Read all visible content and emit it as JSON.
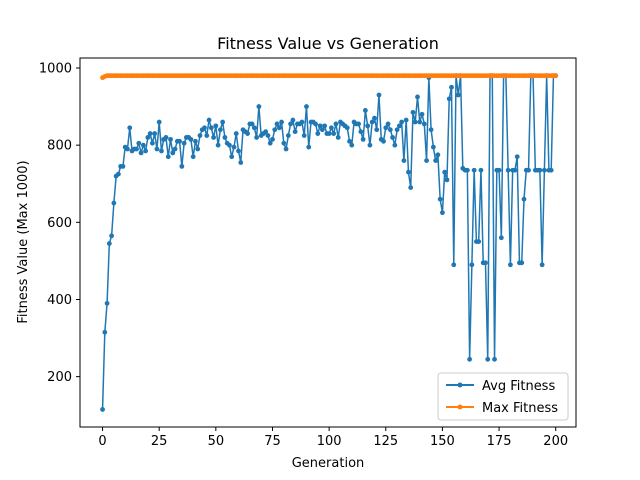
{
  "chart_data": {
    "type": "line",
    "title": "Fitness Value vs Generation",
    "xlabel": "Generation",
    "ylabel": "Fitness Value (Max 1000)",
    "xlim": [
      -9.95,
      208.95
    ],
    "ylim": [
      69.5,
      1025.9
    ],
    "xticks": [
      0,
      25,
      50,
      75,
      100,
      125,
      150,
      175,
      200
    ],
    "yticks": [
      200,
      400,
      600,
      800,
      1000
    ],
    "grid": false,
    "legend": {
      "position": "bottom-right"
    },
    "series": [
      {
        "name": "Avg Fitness",
        "color": "#1f77b4",
        "marker": "circle",
        "x_start": 0,
        "x_step": 1,
        "values": [
          115,
          315,
          390,
          545,
          565,
          650,
          720,
          725,
          745,
          745,
          795,
          790,
          845,
          785,
          790,
          790,
          805,
          780,
          800,
          785,
          820,
          830,
          805,
          830,
          790,
          860,
          785,
          815,
          820,
          770,
          815,
          780,
          790,
          810,
          810,
          745,
          805,
          820,
          820,
          815,
          770,
          810,
          790,
          825,
          840,
          845,
          825,
          865,
          845,
          820,
          850,
          800,
          840,
          860,
          820,
          805,
          800,
          770,
          795,
          830,
          785,
          755,
          840,
          835,
          830,
          855,
          855,
          845,
          820,
          900,
          825,
          830,
          835,
          825,
          805,
          815,
          840,
          855,
          845,
          860,
          805,
          790,
          825,
          855,
          865,
          835,
          855,
          855,
          860,
          825,
          900,
          795,
          860,
          860,
          855,
          830,
          850,
          840,
          850,
          830,
          830,
          845,
          830,
          855,
          820,
          860,
          855,
          850,
          845,
          810,
          800,
          860,
          855,
          855,
          835,
          815,
          890,
          850,
          800,
          860,
          870,
          840,
          930,
          815,
          810,
          845,
          855,
          840,
          820,
          800,
          840,
          850,
          860,
          760,
          865,
          730,
          690,
          885,
          860,
          925,
          860,
          880,
          855,
          760,
          975,
          840,
          795,
          760,
          775,
          660,
          625,
          730,
          710,
          920,
          950,
          490,
          980,
          930,
          980,
          740,
          735,
          735,
          245,
          490,
          735,
          550,
          550,
          735,
          495,
          495,
          245,
          980,
          980,
          245,
          735,
          735,
          560,
          980,
          980,
          735,
          490,
          735,
          735,
          770,
          495,
          495,
          660,
          735,
          735,
          980,
          980,
          735,
          735,
          735,
          490,
          735,
          980,
          735,
          735,
          980,
          980
        ]
      },
      {
        "name": "Max Fitness",
        "color": "#ff7f0e",
        "marker": "circle",
        "x_start": 0,
        "x_step": 1,
        "values": [
          975,
          978,
          980,
          980,
          980,
          980,
          980,
          980,
          980,
          980,
          980,
          980,
          980,
          980,
          980,
          980,
          980,
          980,
          980,
          980,
          980,
          980,
          980,
          980,
          980,
          980,
          980,
          980,
          980,
          980,
          980,
          980,
          980,
          980,
          980,
          980,
          980,
          980,
          980,
          980,
          980,
          980,
          980,
          980,
          980,
          980,
          980,
          980,
          980,
          980,
          980,
          980,
          980,
          980,
          980,
          980,
          980,
          980,
          980,
          980,
          980,
          980,
          980,
          980,
          980,
          980,
          980,
          980,
          980,
          980,
          980,
          980,
          980,
          980,
          980,
          980,
          980,
          980,
          980,
          980,
          980,
          980,
          980,
          980,
          980,
          980,
          980,
          980,
          980,
          980,
          980,
          980,
          980,
          980,
          980,
          980,
          980,
          980,
          980,
          980,
          980,
          980,
          980,
          980,
          980,
          980,
          980,
          980,
          980,
          980,
          980,
          980,
          980,
          980,
          980,
          980,
          980,
          980,
          980,
          980,
          980,
          980,
          980,
          980,
          980,
          980,
          980,
          980,
          980,
          980,
          980,
          980,
          980,
          980,
          980,
          980,
          980,
          980,
          980,
          980,
          980,
          980,
          980,
          980,
          980,
          980,
          980,
          980,
          980,
          980,
          980,
          980,
          980,
          980,
          980,
          980,
          980,
          980,
          980,
          980,
          980,
          980,
          980,
          980,
          980,
          980,
          980,
          980,
          980,
          980,
          980,
          980,
          980,
          980,
          980,
          980,
          980,
          980,
          980,
          980,
          980,
          980,
          980,
          980,
          980,
          980,
          980,
          980,
          980,
          980,
          980,
          980,
          980,
          980,
          980,
          980,
          980,
          980,
          980,
          980,
          980
        ]
      }
    ]
  }
}
